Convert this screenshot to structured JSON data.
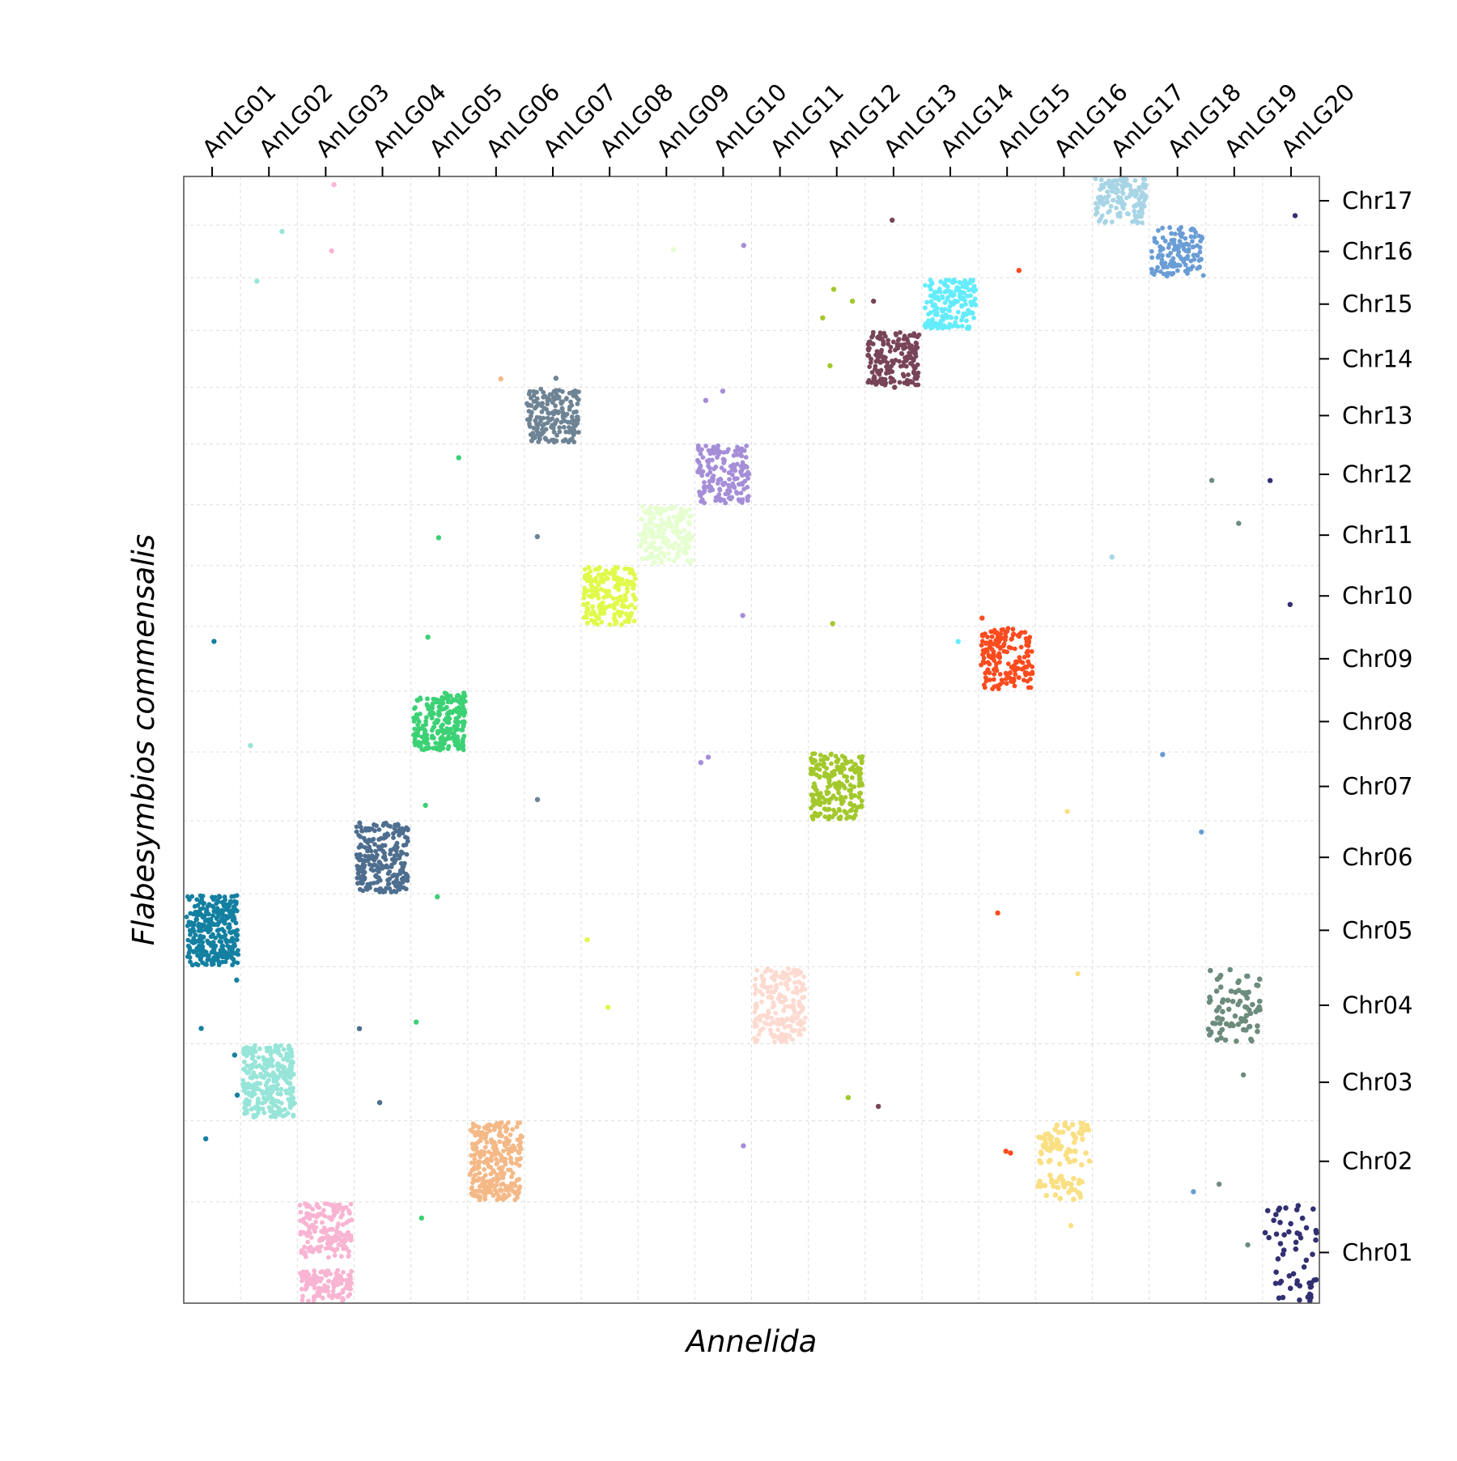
{
  "chart_data": {
    "type": "scatter",
    "subtype": "oxford-dot-plot",
    "xlabel": "Annelida",
    "ylabel": "Flabesymbios commensalis",
    "x_axis_position": "top",
    "y_axis_position": "right",
    "grid": true,
    "x_categories": [
      "AnLG01",
      "AnLG02",
      "AnLG03",
      "AnLG04",
      "AnLG05",
      "AnLG06",
      "AnLG07",
      "AnLG08",
      "AnLG09",
      "AnLG10",
      "AnLG11",
      "AnLG12",
      "AnLG13",
      "AnLG14",
      "AnLG15",
      "AnLG16",
      "AnLG17",
      "AnLG18",
      "AnLG19",
      "AnLG20"
    ],
    "y_categories": [
      "Chr01",
      "Chr02",
      "Chr03",
      "Chr04",
      "Chr05",
      "Chr06",
      "Chr07",
      "Chr08",
      "Chr09",
      "Chr10",
      "Chr11",
      "Chr12",
      "Chr13",
      "Chr14",
      "Chr15",
      "Chr16",
      "Chr17"
    ],
    "colors": [
      "#1380A1",
      "#97E5D8",
      "#F8B4D2",
      "#4E6E8F",
      "#3CD175",
      "#F4B987",
      "#6E8495",
      "#E1F94A",
      "#E6FFD0",
      "#A58ED8",
      "#FDDAD0",
      "#A3C82C",
      "#784458",
      "#63ECFC",
      "#FC4B1E",
      "#FAE084",
      "#A8D5E5",
      "#6A9DD5",
      "#6D8C7D",
      "#332F72"
    ],
    "blocks": [
      {
        "x": "AnLG01",
        "y": "Chr05",
        "n": 320
      },
      {
        "x": "AnLG02",
        "y": "Chr03",
        "n": 300
      },
      {
        "x": "AnLG03",
        "y": "Chr01",
        "n": 300
      },
      {
        "x": "AnLG04",
        "y": "Chr06",
        "n": 240
      },
      {
        "x": "AnLG05",
        "y": "Chr08",
        "n": 240
      },
      {
        "x": "AnLG06",
        "y": "Chr02",
        "n": 280
      },
      {
        "x": "AnLG07",
        "y": "Chr13",
        "n": 190
      },
      {
        "x": "AnLG08",
        "y": "Chr10",
        "n": 200
      },
      {
        "x": "AnLG09",
        "y": "Chr11",
        "n": 180
      },
      {
        "x": "AnLG10",
        "y": "Chr12",
        "n": 170
      },
      {
        "x": "AnLG11",
        "y": "Chr04",
        "n": 190
      },
      {
        "x": "AnLG12",
        "y": "Chr07",
        "n": 220
      },
      {
        "x": "AnLG13",
        "y": "Chr14",
        "n": 180
      },
      {
        "x": "AnLG14",
        "y": "Chr15",
        "n": 170
      },
      {
        "x": "AnLG15",
        "y": "Chr09",
        "n": 170
      },
      {
        "x": "AnLG16",
        "y": "Chr02",
        "n": 110
      },
      {
        "x": "AnLG17",
        "y": "Chr17",
        "n": 140
      },
      {
        "x": "AnLG18",
        "y": "Chr16",
        "n": 130
      },
      {
        "x": "AnLG19",
        "y": "Chr04",
        "n": 80
      },
      {
        "x": "AnLG20",
        "y": "Chr01",
        "n": 55
      }
    ],
    "scattered_points": 70
  }
}
